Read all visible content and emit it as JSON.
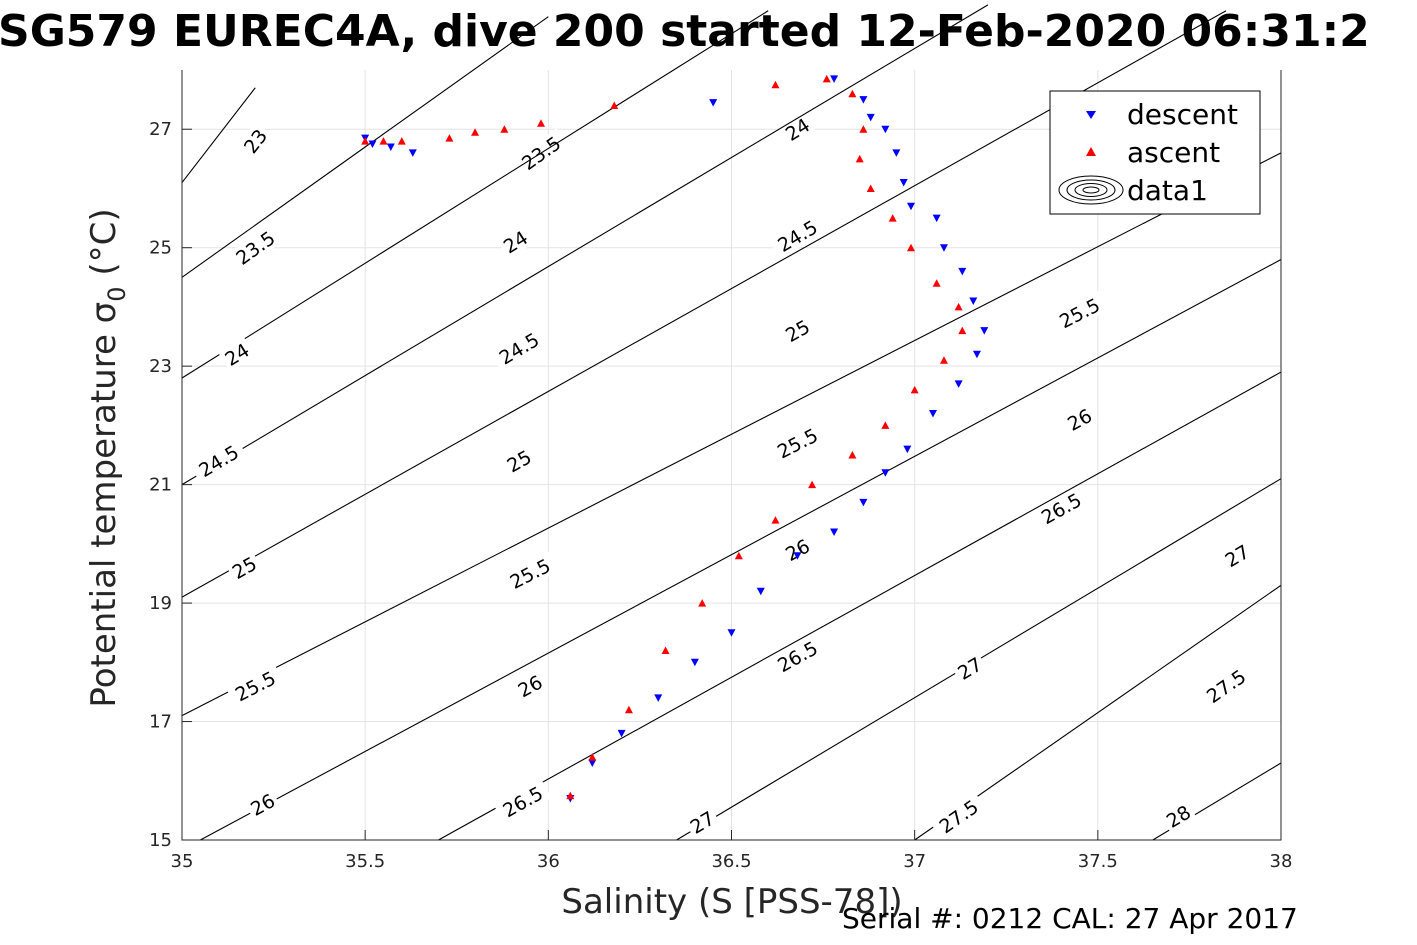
{
  "chart_data": {
    "type": "scatter",
    "title": "SG579 EUREC4A, dive 200 started 12-Feb-2020 06:31:2",
    "xlabel": "Salinity (S [PSS-78])",
    "ylabel": "Potential temperature σ",
    "ylabel_sub": "0",
    "ylabel_unit": " (°C)",
    "xlim": [
      35,
      38
    ],
    "ylim": [
      15,
      28
    ],
    "xticks": [
      35,
      35.5,
      36,
      36.5,
      37,
      37.5,
      38
    ],
    "yticks": [
      15,
      17,
      19,
      21,
      23,
      25,
      27
    ],
    "xtick_labels": [
      "35",
      "35.5",
      "36",
      "36.5",
      "37",
      "37.5",
      "38"
    ],
    "ytick_labels": [
      "15",
      "17",
      "19",
      "21",
      "23",
      "25",
      "27"
    ],
    "grid": true,
    "legend_position": "top-right",
    "series": [
      {
        "name": "descent",
        "color": "#0000ff",
        "marker": "triangle-down",
        "points": [
          [
            36.45,
            27.45
          ],
          [
            36.78,
            27.85
          ],
          [
            36.86,
            27.5
          ],
          [
            36.88,
            27.2
          ],
          [
            36.92,
            27.0
          ],
          [
            36.95,
            26.6
          ],
          [
            36.97,
            26.1
          ],
          [
            36.99,
            25.7
          ],
          [
            37.06,
            25.5
          ],
          [
            37.08,
            25.0
          ],
          [
            37.13,
            24.6
          ],
          [
            37.16,
            24.1
          ],
          [
            37.19,
            23.6
          ],
          [
            37.17,
            23.2
          ],
          [
            37.12,
            22.7
          ],
          [
            37.05,
            22.2
          ],
          [
            36.98,
            21.6
          ],
          [
            36.92,
            21.2
          ],
          [
            36.86,
            20.7
          ],
          [
            36.78,
            20.2
          ],
          [
            36.68,
            19.8
          ],
          [
            36.58,
            19.2
          ],
          [
            36.5,
            18.5
          ],
          [
            36.4,
            18.0
          ],
          [
            36.3,
            17.4
          ],
          [
            36.2,
            16.8
          ],
          [
            36.12,
            16.3
          ],
          [
            36.06,
            15.7
          ],
          [
            35.5,
            26.85
          ],
          [
            35.57,
            26.7
          ],
          [
            35.63,
            26.6
          ],
          [
            35.52,
            26.75
          ]
        ]
      },
      {
        "name": "ascent",
        "color": "#ff0000",
        "marker": "triangle-up",
        "points": [
          [
            36.18,
            27.4
          ],
          [
            36.62,
            27.75
          ],
          [
            36.76,
            27.85
          ],
          [
            36.83,
            27.6
          ],
          [
            36.86,
            27.0
          ],
          [
            36.85,
            26.5
          ],
          [
            36.88,
            26.0
          ],
          [
            36.94,
            25.5
          ],
          [
            36.99,
            25.0
          ],
          [
            37.06,
            24.4
          ],
          [
            37.12,
            24.0
          ],
          [
            37.13,
            23.6
          ],
          [
            37.08,
            23.1
          ],
          [
            37.0,
            22.6
          ],
          [
            36.92,
            22.0
          ],
          [
            36.83,
            21.5
          ],
          [
            36.72,
            21.0
          ],
          [
            36.62,
            20.4
          ],
          [
            36.52,
            19.8
          ],
          [
            36.42,
            19.0
          ],
          [
            36.32,
            18.2
          ],
          [
            36.22,
            17.2
          ],
          [
            36.12,
            16.4
          ],
          [
            36.06,
            15.75
          ],
          [
            35.5,
            26.8
          ],
          [
            35.55,
            26.8
          ],
          [
            35.6,
            26.8
          ],
          [
            35.73,
            26.85
          ],
          [
            35.8,
            26.95
          ],
          [
            35.88,
            27.0
          ],
          [
            35.98,
            27.1
          ]
        ]
      }
    ],
    "contour_levels": [
      23,
      23.5,
      24,
      24.5,
      25,
      25.5,
      26,
      26.5,
      27,
      27.5,
      28
    ],
    "contour_lines": [
      {
        "level": "23",
        "points": [
          [
            35,
            26.1
          ],
          [
            35.2,
            27.7
          ]
        ],
        "labels": [
          [
            35.2,
            26.8
          ]
        ]
      },
      {
        "level": "23.5",
        "points": [
          [
            35,
            24.5
          ],
          [
            35.5,
            26.7
          ],
          [
            36.0,
            28.9
          ]
        ],
        "labels": [
          [
            35.2,
            25.0
          ],
          [
            35.98,
            26.6
          ]
        ]
      },
      {
        "level": "24",
        "points": [
          [
            35,
            22.8
          ],
          [
            36.6,
            29.0
          ]
        ],
        "labels": [
          [
            35.15,
            23.2
          ],
          [
            35.91,
            25.1
          ],
          [
            36.68,
            27.0
          ]
        ]
      },
      {
        "level": "24.5",
        "points": [
          [
            35,
            21.0
          ],
          [
            37.2,
            29.1
          ]
        ],
        "labels": [
          [
            35.1,
            21.4
          ],
          [
            35.92,
            23.3
          ],
          [
            36.68,
            25.2
          ]
        ]
      },
      {
        "level": "25",
        "points": [
          [
            35,
            19.1
          ],
          [
            37.85,
            29.0
          ]
        ],
        "labels": [
          [
            35.17,
            19.6
          ],
          [
            35.92,
            21.4
          ],
          [
            36.68,
            23.6
          ]
        ]
      },
      {
        "level": "25.5",
        "points": [
          [
            35,
            17.1
          ],
          [
            38.0,
            26.6
          ]
        ],
        "labels": [
          [
            35.2,
            17.6
          ],
          [
            35.95,
            19.5
          ],
          [
            36.68,
            21.7
          ],
          [
            37.45,
            23.9
          ]
        ]
      },
      {
        "level": "26",
        "points": [
          [
            35.05,
            15.0
          ],
          [
            38.0,
            24.8
          ]
        ],
        "labels": [
          [
            35.22,
            15.6
          ],
          [
            35.95,
            17.6
          ],
          [
            36.68,
            19.9
          ],
          [
            37.45,
            22.1
          ]
        ]
      },
      {
        "level": "26.5",
        "points": [
          [
            35.7,
            15.0
          ],
          [
            38.0,
            22.9
          ]
        ],
        "labels": [
          [
            35.93,
            15.65
          ],
          [
            36.68,
            18.1
          ],
          [
            37.4,
            20.6
          ]
        ]
      },
      {
        "level": "27",
        "points": [
          [
            36.35,
            15.0
          ],
          [
            38.0,
            21.1
          ]
        ],
        "labels": [
          [
            36.42,
            15.3
          ],
          [
            37.15,
            17.9
          ],
          [
            37.88,
            19.8
          ]
        ]
      },
      {
        "level": "27.5",
        "points": [
          [
            37.0,
            15.0
          ],
          [
            38.0,
            19.3
          ]
        ],
        "labels": [
          [
            37.12,
            15.4
          ],
          [
            37.85,
            17.6
          ]
        ]
      },
      {
        "level": "28",
        "points": [
          [
            37.65,
            15.0
          ],
          [
            38.0,
            16.3
          ]
        ],
        "labels": [
          [
            37.72,
            15.4
          ]
        ]
      }
    ],
    "legend": [
      "descent",
      "ascent",
      "data1"
    ]
  },
  "footer": "Serial #: 0212  CAL: 27 Apr 2017"
}
